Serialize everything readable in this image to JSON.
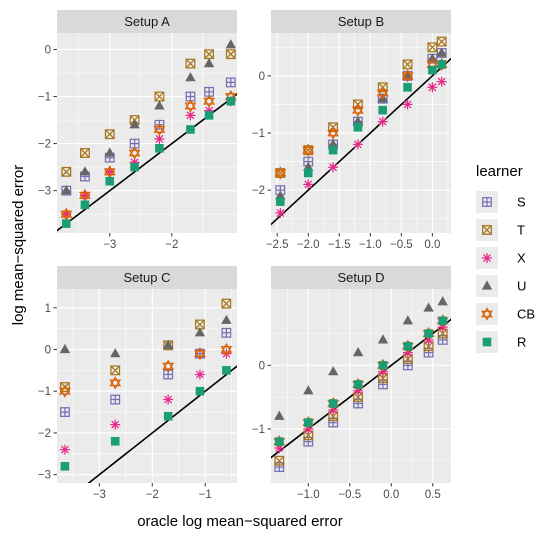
{
  "chart_data": {
    "type": "scatter",
    "xlabel": "oracle log mean−squared error",
    "ylabel": "log mean−squared error",
    "legend": {
      "title": "learner",
      "placement": "right",
      "entries": [
        {
          "name": "S",
          "color": "#7570b3",
          "shape": "square-plus"
        },
        {
          "name": "T",
          "color": "#a6761d",
          "shape": "square-x"
        },
        {
          "name": "X",
          "color": "#e7298a",
          "shape": "asterisk"
        },
        {
          "name": "U",
          "color": "#666666",
          "shape": "triangle"
        },
        {
          "name": "CB",
          "color": "#d95f02",
          "shape": "star-of-david"
        },
        {
          "name": "R",
          "color": "#1b9e77",
          "shape": "square"
        }
      ]
    },
    "reference_line": "y = x",
    "grid": true,
    "panels": [
      {
        "title": "Setup A",
        "xlim": [
          -3.85,
          -0.95
        ],
        "ylim": [
          -3.9,
          0.35
        ],
        "xticks": [
          {
            "v": -3,
            "label": "−3"
          },
          {
            "v": -2,
            "label": "−2"
          }
        ],
        "yticks": [
          {
            "v": -3,
            "label": "−3"
          },
          {
            "v": -2,
            "label": "−2"
          },
          {
            "v": -1,
            "label": "−1"
          },
          {
            "v": 0,
            "label": "0"
          }
        ],
        "oracle_x": [
          -3.7,
          -3.4,
          -3.0,
          -2.6,
          -2.2,
          -1.7,
          -1.4,
          -1.05
        ],
        "series": {
          "S": [
            -3.0,
            -2.7,
            -2.3,
            -2.0,
            -1.6,
            -1.0,
            -0.9,
            -0.7
          ],
          "T": [
            -2.6,
            -2.2,
            -1.8,
            -1.5,
            -1.0,
            -0.3,
            -0.1,
            -0.1
          ],
          "X": [
            -3.5,
            -3.1,
            -2.6,
            -2.4,
            -1.9,
            -1.4,
            -1.3,
            -1.1
          ],
          "U": [
            -3.0,
            -2.6,
            -2.2,
            -1.6,
            -1.2,
            -0.6,
            -0.3,
            0.1
          ],
          "CB": [
            -3.5,
            -3.1,
            -2.6,
            -2.2,
            -1.7,
            -1.2,
            -1.1,
            -1.0
          ],
          "R": [
            -3.7,
            -3.3,
            -2.8,
            -2.5,
            -2.1,
            -1.7,
            -1.4,
            -1.1
          ]
        }
      },
      {
        "title": "Setup B",
        "xlim": [
          -2.6,
          0.3
        ],
        "ylim": [
          -2.75,
          0.75
        ],
        "xticks": [
          {
            "v": -2.5,
            "label": "−2.5"
          },
          {
            "v": -2.0,
            "label": "−2.0"
          },
          {
            "v": -1.5,
            "label": "−1.5"
          },
          {
            "v": -1.0,
            "label": "−1.0"
          },
          {
            "v": -0.5,
            "label": "−0.5"
          },
          {
            "v": 0.0,
            "label": "0.0"
          }
        ],
        "yticks": [
          {
            "v": -2,
            "label": "−2"
          },
          {
            "v": -1,
            "label": "−1"
          },
          {
            "v": 0,
            "label": "0"
          }
        ],
        "oracle_x": [
          -2.45,
          -2.0,
          -1.6,
          -1.2,
          -0.8,
          -0.4,
          0.0,
          0.15
        ],
        "series": {
          "S": [
            -2.0,
            -1.5,
            -1.2,
            -0.8,
            -0.4,
            0.0,
            0.3,
            0.4
          ],
          "T": [
            -1.7,
            -1.3,
            -0.9,
            -0.5,
            -0.2,
            0.2,
            0.5,
            0.6
          ],
          "X": [
            -2.4,
            -1.9,
            -1.6,
            -1.2,
            -0.8,
            -0.5,
            -0.2,
            -0.1
          ],
          "U": [
            -2.1,
            -1.6,
            -1.2,
            -0.8,
            -0.4,
            0.0,
            0.3,
            0.4
          ],
          "CB": [
            -1.7,
            -1.3,
            -1.0,
            -0.6,
            -0.3,
            0.0,
            0.2,
            0.2
          ],
          "R": [
            -2.2,
            -1.7,
            -1.3,
            -0.9,
            -0.6,
            -0.2,
            0.1,
            0.2
          ]
        }
      },
      {
        "title": "Setup C",
        "xlim": [
          -3.8,
          -0.4
        ],
        "ylim": [
          -3.2,
          1.45
        ],
        "xticks": [
          {
            "v": -3,
            "label": "−3"
          },
          {
            "v": -2,
            "label": "−2"
          },
          {
            "v": -1,
            "label": "−1"
          }
        ],
        "yticks": [
          {
            "v": -3,
            "label": "−3"
          },
          {
            "v": -2,
            "label": "−2"
          },
          {
            "v": -1,
            "label": "−1"
          },
          {
            "v": 0,
            "label": "0"
          },
          {
            "v": 1,
            "label": "1"
          }
        ],
        "oracle_x": [
          -3.65,
          -2.7,
          -1.7,
          -1.1,
          -0.6
        ],
        "series": {
          "S": [
            -1.5,
            -1.2,
            -0.6,
            -0.1,
            0.4
          ],
          "T": [
            -0.9,
            -0.5,
            0.1,
            0.6,
            1.1
          ],
          "X": [
            -2.4,
            -1.8,
            -1.2,
            -0.6,
            -0.1
          ],
          "U": [
            0.0,
            -0.1,
            0.1,
            0.4,
            0.7
          ],
          "CB": [
            -1.0,
            -0.8,
            -0.4,
            -0.1,
            0.0
          ],
          "R": [
            -2.8,
            -2.2,
            -1.6,
            -1.0,
            -0.5
          ]
        }
      },
      {
        "title": "Setup D",
        "xlim": [
          -1.45,
          0.72
        ],
        "ylim": [
          -1.85,
          1.2
        ],
        "xticks": [
          {
            "v": -1.0,
            "label": "−1.0"
          },
          {
            "v": -0.5,
            "label": "−0.5"
          },
          {
            "v": 0.0,
            "label": "0.0"
          },
          {
            "v": 0.5,
            "label": "0.5"
          }
        ],
        "yticks": [
          {
            "v": -1,
            "label": "−1"
          },
          {
            "v": 0,
            "label": "0"
          }
        ],
        "oracle_x": [
          -1.35,
          -1.0,
          -0.7,
          -0.4,
          -0.1,
          0.2,
          0.45,
          0.62
        ],
        "series": {
          "S": [
            -1.6,
            -1.2,
            -0.9,
            -0.6,
            -0.3,
            0.0,
            0.2,
            0.4
          ],
          "T": [
            -1.5,
            -1.1,
            -0.8,
            -0.5,
            -0.2,
            0.1,
            0.3,
            0.5
          ],
          "X": [
            -1.3,
            -1.0,
            -0.7,
            -0.4,
            -0.1,
            0.2,
            0.4,
            0.6
          ],
          "U": [
            -0.8,
            -0.4,
            -0.1,
            0.2,
            0.4,
            0.7,
            0.9,
            1.0
          ],
          "CB": [
            -1.2,
            -0.9,
            -0.6,
            -0.3,
            0.0,
            0.3,
            0.5,
            0.7
          ],
          "R": [
            -1.2,
            -0.9,
            -0.6,
            -0.3,
            0.0,
            0.3,
            0.5,
            0.7
          ]
        }
      }
    ]
  }
}
